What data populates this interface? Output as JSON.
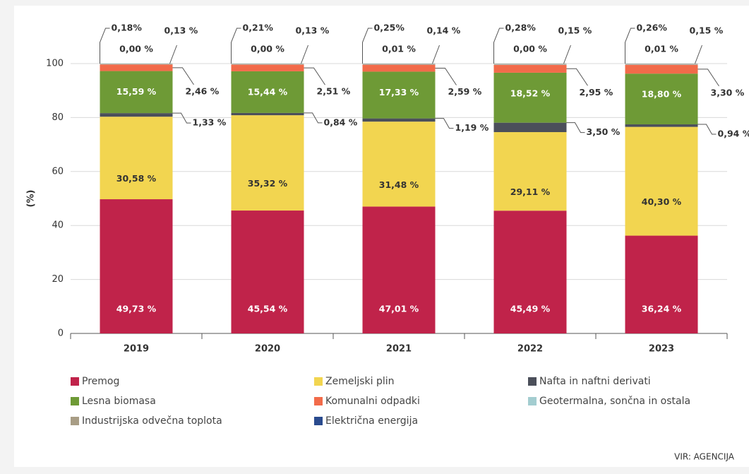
{
  "chart_data": {
    "type": "bar",
    "stacked": true,
    "y_label": "(%)",
    "source": "VIR: AGENCIJA",
    "categories": [
      "2019",
      "2020",
      "2021",
      "2022",
      "2023"
    ],
    "ylim": [
      0,
      100
    ],
    "yticks": [
      0,
      20,
      40,
      60,
      80,
      100
    ],
    "grid": true,
    "series": [
      {
        "name": "Premog",
        "color": "#c0234a",
        "values": [
          49.73,
          45.54,
          47.01,
          45.49,
          36.24
        ],
        "value_labels": [
          "49,73 %",
          "45,54 %",
          "47,01 %",
          "45,49 %",
          "36,24 %"
        ]
      },
      {
        "name": "Zemeljski plin",
        "color": "#f2d550",
        "values": [
          30.58,
          35.32,
          31.48,
          29.11,
          40.3
        ],
        "value_labels": [
          "30,58 %",
          "35,32 %",
          "31,48 %",
          "29,11 %",
          "40,30 %"
        ]
      },
      {
        "name": "Nafta in naftni derivati",
        "color": "#4b4f5a",
        "values": [
          1.33,
          0.84,
          1.19,
          3.5,
          0.94
        ],
        "value_labels": [
          "1,33 %",
          "0,84 %",
          "1,19 %",
          "3,50 %",
          "0,94 %"
        ]
      },
      {
        "name": "Lesna biomasa",
        "color": "#6e9a36",
        "values": [
          15.59,
          15.44,
          17.33,
          18.52,
          18.8
        ],
        "value_labels": [
          "15,59 %",
          "15,44 %",
          "17,33 %",
          "18,52 %",
          "18,80 %"
        ]
      },
      {
        "name": "Komunalni odpadki",
        "color": "#f26b4a",
        "values": [
          2.46,
          2.51,
          2.59,
          2.95,
          3.3
        ],
        "value_labels": [
          "2,46 %",
          "2,51 %",
          "2,59 %",
          "2,95 %",
          "3,30 %"
        ]
      },
      {
        "name": "Geotermalna, sončna in ostala",
        "color": "#a3cdd0",
        "values": [
          0.18,
          0.21,
          0.25,
          0.28,
          0.26
        ],
        "value_labels": [
          "0,18%",
          "0,21%",
          "0,25%",
          "0,28%",
          "0,26%"
        ]
      },
      {
        "name": "Industrijska odvečna toplota",
        "color": "#a89d85",
        "values": [
          0.13,
          0.13,
          0.14,
          0.15,
          0.15
        ],
        "value_labels": [
          "0,13 %",
          "0,13 %",
          "0,14 %",
          "0,15 %",
          "0,15 %"
        ]
      },
      {
        "name": "Električna energija",
        "color": "#2a4b8e",
        "values": [
          0.0,
          0.0,
          0.01,
          0.0,
          0.01
        ],
        "value_labels": [
          "0,00 %",
          "0,00 %",
          "0,01 %",
          "0,00 %",
          "0,01 %"
        ]
      }
    ]
  }
}
